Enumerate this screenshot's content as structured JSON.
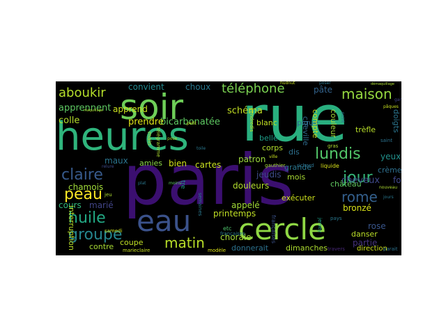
{
  "words": [
    {
      "text": "paris",
      "color": "#3b0f70"
    },
    {
      "text": "rue",
      "color": "#29af7f"
    },
    {
      "text": "heures",
      "color": "#2fb47c"
    },
    {
      "text": "soir",
      "color": "#6ece58"
    },
    {
      "text": "eau",
      "color": "#3b528b"
    },
    {
      "text": "cercle",
      "color": "#8fd744"
    },
    {
      "text": "matin",
      "color": "#b8de29"
    },
    {
      "text": "groupe",
      "color": "#25858e"
    },
    {
      "text": "huile",
      "color": "#22a884"
    },
    {
      "text": "peau",
      "color": "#fde725"
    },
    {
      "text": "claire",
      "color": "#375a8c"
    },
    {
      "text": "lundis",
      "color": "#52c569"
    },
    {
      "text": "jour",
      "color": "#35b779"
    },
    {
      "text": "rome",
      "color": "#34608d"
    },
    {
      "text": "maison",
      "color": "#95d840"
    },
    {
      "text": "téléphone",
      "color": "#7ad151"
    },
    {
      "text": "aboukir",
      "color": "#b5de2b"
    },
    {
      "text": "bicarbonatée",
      "color": "#5ec962"
    },
    {
      "text": "schéma",
      "color": "#c2df23"
    },
    {
      "text": "prendre",
      "color": "#dde318"
    },
    {
      "text": "colle",
      "color": "#b5de2b"
    },
    {
      "text": "apprennent",
      "color": "#5ec962"
    },
    {
      "text": "apprend",
      "color": "#cae11f"
    },
    {
      "text": "convient",
      "color": "#23898e"
    },
    {
      "text": "choux",
      "color": "#2a788e"
    },
    {
      "text": "pâte",
      "color": "#33638d"
    },
    {
      "text": "cheveux",
      "color": "#3e4989"
    },
    {
      "text": "yeux",
      "color": "#21918c"
    },
    {
      "text": "bronzé",
      "color": "#d8e219"
    },
    {
      "text": "rose",
      "color": "#39568c"
    },
    {
      "text": "partie",
      "color": "#46337e"
    },
    {
      "text": "fois",
      "color": "#404688"
    },
    {
      "text": "printemps",
      "color": "#c0df25"
    },
    {
      "text": "chorale",
      "color": "#a5db36"
    },
    {
      "text": "appelé",
      "color": "#a2da37"
    },
    {
      "text": "douleurs",
      "color": "#b2dd2d"
    },
    {
      "text": "jeudis",
      "color": "#3e4c8a"
    },
    {
      "text": "patron",
      "color": "#9bd93c"
    },
    {
      "text": "cartes",
      "color": "#c8e020"
    },
    {
      "text": "bien",
      "color": "#d2e21b"
    },
    {
      "text": "amies",
      "color": "#8bd646"
    },
    {
      "text": "maux",
      "color": "#2b748e"
    },
    {
      "text": "chamois",
      "color": "#a0da39"
    },
    {
      "text": "cours",
      "color": "#31b57b"
    },
    {
      "text": "marié",
      "color": "#414487"
    },
    {
      "text": "coupe",
      "color": "#c0df25"
    },
    {
      "text": "contre",
      "color": "#a8db34"
    },
    {
      "text": "donnerait",
      "color": "#b8de29"
    },
    {
      "text": "dimanches",
      "color": "#addc30"
    },
    {
      "text": "exécuter",
      "color": "#2c728e"
    },
    {
      "text": "château",
      "color": "#cde11d"
    },
    {
      "text": "crème",
      "color": "#60ca60"
    },
    {
      "text": "danser",
      "color": "#2e6f8e"
    },
    {
      "text": "direction",
      "color": "#bade28"
    },
    {
      "text": "grande",
      "color": "#cde11d"
    },
    {
      "text": "mois",
      "color": "#2a768e"
    },
    {
      "text": "dis",
      "color": "#a8db34"
    },
    {
      "text": "corps",
      "color": "#2d708e"
    },
    {
      "text": "belle",
      "color": "#b2dd2d"
    },
    {
      "text": "blanc",
      "color": "#1f9e89"
    },
    {
      "text": "pique",
      "color": "#c2df23"
    },
    {
      "text": "trèfle",
      "color": "#31688e"
    },
    {
      "text": "cheville",
      "color": "#2f6c8e"
    },
    {
      "text": "compte",
      "color": "#c8e020"
    },
    {
      "text": "couleur",
      "color": "#a5db36"
    },
    {
      "text": "doigts",
      "color": "#b8de29"
    },
    {
      "text": "tre",
      "color": "#2b758e"
    },
    {
      "text": "interruption",
      "color": "#1f998a"
    },
    {
      "text": "etc",
      "color": "#4ec36b"
    },
    {
      "text": "françaises",
      "color": "#2a788e"
    },
    {
      "text": "jersey",
      "color": "#3b528b"
    },
    {
      "text": "tennis",
      "color": "#1fa188"
    },
    {
      "text": "travers",
      "color": "#482878"
    },
    {
      "text": "parait",
      "color": "#2c728e"
    },
    {
      "text": "modèle",
      "color": "#dde318"
    },
    {
      "text": "marieclaire",
      "color": "#c8e020"
    },
    {
      "text": "samedi",
      "color": "#cae11f"
    },
    {
      "text": "jeu",
      "color": "#addc30"
    },
    {
      "text": "plat",
      "color": "#2a788e"
    },
    {
      "text": "moins",
      "color": "#5ec962"
    },
    {
      "text": "relure",
      "color": "#3e4c8a"
    },
    {
      "text": "gauthier",
      "color": "#a5db36"
    },
    {
      "text": "liquide",
      "color": "#d8e219"
    },
    {
      "text": "richard",
      "color": "#2c728e"
    },
    {
      "text": "pays",
      "color": "#2a788e"
    },
    {
      "text": "gras",
      "color": "#addc30"
    },
    {
      "text": "pâques",
      "color": "#c8e020"
    },
    {
      "text": "saint",
      "color": "#2c728e"
    },
    {
      "text": "gardez",
      "color": "#414487"
    },
    {
      "text": "nouveau",
      "color": "#addc30"
    },
    {
      "text": "jours",
      "color": "#2a788e"
    },
    {
      "text": "poser",
      "color": "#2a788e"
    },
    {
      "text": "hudnut",
      "color": "#c8e020"
    },
    {
      "text": "démaquillage",
      "color": "#addc30"
    },
    {
      "text": "rayon",
      "color": "#2c728e"
    },
    {
      "text": "maquillage",
      "color": "#addc30"
    },
    {
      "text": "bleu",
      "color": "#2c728e"
    },
    {
      "text": "lisse",
      "color": "#c8e020"
    },
    {
      "text": "main",
      "color": "#addc30"
    },
    {
      "text": "toile",
      "color": "#2a788e"
    },
    {
      "text": "ville",
      "color": "#c8e020"
    },
    {
      "text": "pose",
      "color": "#addc30"
    },
    {
      "text": "petit",
      "color": "#c8e020"
    },
    {
      "text": "point",
      "color": "#2c728e"
    },
    {
      "text": "télégramme",
      "color": "#addc30"
    },
    {
      "text": "vendredis",
      "color": "#c8e020"
    },
    {
      "text": "semaines",
      "color": "#2a788e"
    },
    {
      "text": "loi",
      "color": "#addc30"
    }
  ]
}
